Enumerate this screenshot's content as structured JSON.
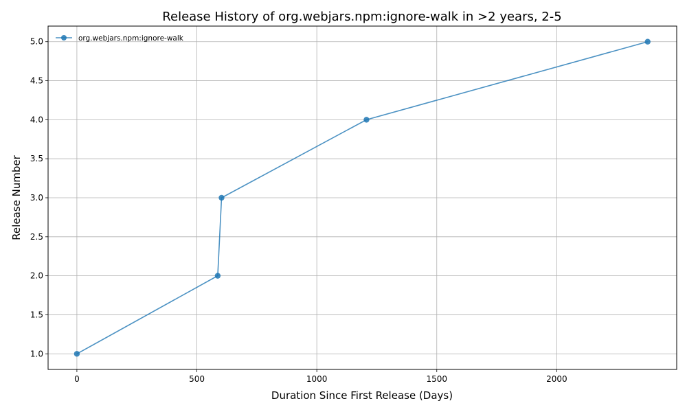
{
  "chart_data": {
    "type": "line",
    "title": "Release History of org.webjars.npm:ignore-walk in >2 years, 2-5",
    "xlabel": "Duration Since First Release (Days)",
    "ylabel": "Release Number",
    "xlim": [
      -120,
      2500
    ],
    "ylim": [
      0.8,
      5.2
    ],
    "xticks": [
      0,
      500,
      1000,
      1500,
      2000
    ],
    "yticks": [
      1.0,
      1.5,
      2.0,
      2.5,
      3.0,
      3.5,
      4.0,
      4.5,
      5.0
    ],
    "xtick_labels": [
      "0",
      "500",
      "1000",
      "1500",
      "2000"
    ],
    "ytick_labels": [
      "1.0",
      "1.5",
      "2.0",
      "2.5",
      "3.0",
      "3.5",
      "4.0",
      "4.5",
      "5.0"
    ],
    "grid": true,
    "legend_position": "top-left",
    "series": [
      {
        "name": "org.webjars.npm:ignore-walk",
        "color": "#1f77b4",
        "x": [
          0,
          587,
          603,
          1207,
          2379
        ],
        "y": [
          1,
          2,
          3,
          4,
          5
        ]
      }
    ]
  }
}
